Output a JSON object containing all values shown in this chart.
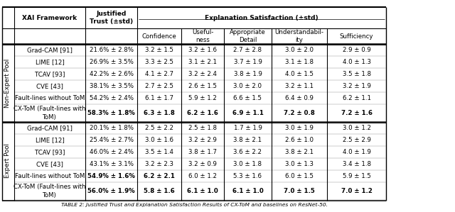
{
  "caption": "TABLE 2: Justified Trust and Explanation Satisfaction Results of CX-ToM and baselines on ResNet-50.",
  "non_expert_rows": [
    [
      "Grad-CAM [91]",
      "21.6% ± 2.8%",
      "3.2 ± 1.5",
      "3.2 ± 1.6",
      "2.7 ± 2.8",
      "3.0 ± 2.0",
      "2.9 ± 0.9",
      false
    ],
    [
      "LIME [12]",
      "26.9% ± 3.5%",
      "3.3 ± 2.5",
      "3.1 ± 2.1",
      "3.7 ± 1.9",
      "3.1 ± 1.8",
      "4.0 ± 1.3",
      false
    ],
    [
      "TCAV [93]",
      "42.2% ± 2.6%",
      "4.1 ± 2.7",
      "3.2 ± 2.4",
      "3.8 ± 1.9",
      "4.0 ± 1.5",
      "3.5 ± 1.8",
      false
    ],
    [
      "CVE [43]",
      "38.1% ± 3.5%",
      "2.7 ± 2.5",
      "2.6 ± 1.5",
      "3.0 ± 2.0",
      "3.2 ± 1.1",
      "3.2 ± 1.9",
      false
    ],
    [
      "Fault-lines without ToM",
      "54.2% ± 2.4%",
      "6.1 ± 1.7",
      "5.9 ± 1.2",
      "6.6 ± 1.5",
      "6.4 ± 0.9",
      "6.2 ± 1.1",
      false
    ],
    [
      "CX-ToM (Fault-lines with\nToM)",
      "58.3% ± 1.8%",
      "6.3 ± 1.8",
      "6.2 ± 1.6",
      "6.9 ± 1.1",
      "7.2 ± 0.8",
      "7.2 ± 1.6",
      true
    ]
  ],
  "expert_rows": [
    [
      "Grad-CAM [91]",
      "20.1% ± 1.8%",
      "2.5 ± 2.2",
      "2.5 ± 1.8",
      "1.7 ± 1.9",
      "3.0 ± 1.9",
      "3.0 ± 1.2",
      false
    ],
    [
      "LIME [12]",
      "25.4% ± 2.7%",
      "3.0 ± 1.6",
      "3.2 ± 2.9",
      "3.8 ± 2.1",
      "2.6 ± 1.0",
      "2.5 ± 2.9",
      false
    ],
    [
      "TCAV [93]",
      "46.0% ± 2.4%",
      "3.5 ± 1.4",
      "3.8 ± 1.7",
      "3.6 ± 2.2",
      "3.8 ± 2.1",
      "4.0 ± 1.9",
      false
    ],
    [
      "CVE [43]",
      "43.1% ± 3.1%",
      "3.2 ± 2.3",
      "3.2 ± 0.9",
      "3.0 ± 1.8",
      "3.0 ± 1.3",
      "3.4 ± 1.8",
      false
    ],
    [
      "Fault-lines without ToM",
      "54.9% ± 1.6%",
      "6.2 ± 2.1",
      "6.0 ± 1.2",
      "5.3 ± 1.6",
      "6.0 ± 1.5",
      "5.9 ± 1.5",
      false
    ],
    [
      "CX-ToM (Fault-lines with\nToM)",
      "56.0% ± 1.9%",
      "5.8 ± 1.6",
      "6.1 ± 1.0",
      "6.1 ± 1.0",
      "7.0 ± 1.5",
      "7.0 ± 1.2",
      true
    ]
  ],
  "ne_fault_bold_conf": true,
  "exp_fault_bold_conf": true,
  "bg_color": "#ffffff",
  "text_color": "#000000",
  "fontsize": 6.2
}
